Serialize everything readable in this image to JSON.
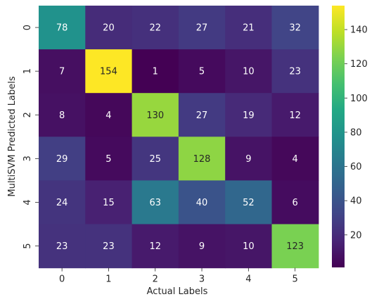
{
  "chart_data": {
    "type": "heatmap",
    "title": "",
    "xlabel": "Actual Labels",
    "ylabel": "MultiSVM Predicted Labels",
    "x_categories": [
      "0",
      "1",
      "2",
      "3",
      "4",
      "5"
    ],
    "y_categories": [
      "0",
      "1",
      "2",
      "3",
      "4",
      "5"
    ],
    "values": [
      [
        78,
        20,
        22,
        27,
        21,
        32
      ],
      [
        7,
        154,
        1,
        5,
        10,
        23
      ],
      [
        8,
        4,
        130,
        27,
        19,
        12
      ],
      [
        29,
        5,
        25,
        128,
        9,
        4
      ],
      [
        24,
        15,
        63,
        40,
        52,
        6
      ],
      [
        23,
        23,
        12,
        9,
        10,
        123
      ]
    ],
    "colormap": "viridis",
    "vmin": 1,
    "vmax": 154,
    "colorbar": {
      "ticks": [
        20,
        40,
        60,
        80,
        100,
        120,
        140
      ],
      "tick_labels": [
        "20",
        "40",
        "60",
        "80",
        "100",
        "120",
        "140"
      ]
    },
    "annotation_colors": {
      "light": "#ffffff",
      "dark": "#262626"
    }
  }
}
